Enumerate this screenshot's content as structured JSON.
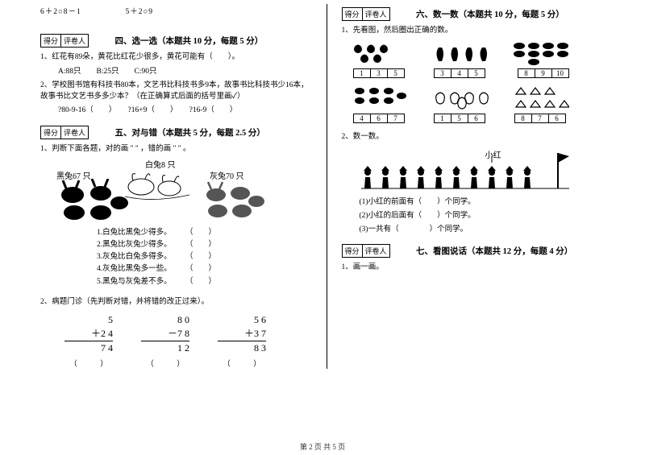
{
  "top_eq": {
    "a": "6＋2○8－1",
    "b": "5＋2○9"
  },
  "scorebox": {
    "s": "得分",
    "g": "评卷人"
  },
  "s4": {
    "title": "四、选一选（本题共 10 分，每题 5 分）",
    "q1": "1、红花有89朵，黄花比红花少很多，黄花可能有（　　）。",
    "q1opts": "A:88只　　B:25只　　C:90只",
    "q2": "2、学校图书馆有科技书80本，文艺书比科技书多9本，故事书比科技书少16本，故事书比文艺书多多少本？（在正确算式后面的括号里画✓）",
    "q2opts": "?80-9-16（　　）　　?16+9（　　）　　?16-9（　　）"
  },
  "s5": {
    "title": "五、对与错（本题共 5 分，每题 2.5 分）",
    "q1": "1、判断下面各题，对的画 \" \" ，错的画 \" \" 。",
    "lbl_white": "白兔8 只",
    "lbl_black": "黑兔67 只",
    "lbl_grey": "灰兔70 只",
    "j1": "1.白兔比黑兔少得多。",
    "p": "（　　）",
    "j2": "2.黑兔比灰兔少得多。",
    "j3": "3.灰兔比白兔多得多。",
    "j4": "4.灰兔比黑兔多一些。",
    "j5": "5.黑兔与灰兔差不多。",
    "q2": "2、病题门诊（先判断对错，并将错的改正过来）。",
    "a": {
      "t": "5",
      "m": "＋2 4",
      "b": "7 4"
    },
    "b": {
      "t": "8 0",
      "m": "－7 8",
      "b": "1 2"
    },
    "c": {
      "t": "5 6",
      "m": "＋3 7",
      "b": "8 3"
    },
    "par": "（　　　）"
  },
  "s6": {
    "title": "六、数一数（本题共 10 分，每题 5 分）",
    "q1": "1、先看图，然后圈出正确的数。",
    "r1": [
      [
        "1",
        "3",
        "5"
      ],
      [
        "3",
        "4",
        "5"
      ],
      [
        "8",
        "9",
        "10"
      ]
    ],
    "r2": [
      [
        "4",
        "6",
        "7"
      ],
      [
        "1",
        "5",
        "6"
      ],
      [
        "8",
        "7",
        "6"
      ]
    ],
    "q2": "2、数一数。",
    "xh": "小红",
    "a": "(1)小红的前面有（　　）个同学。",
    "b": "(2)小红的后面有（　　）个同学。",
    "c": "(3)一共有（　　　　）个同学。"
  },
  "s7": {
    "title": "七、看图说话（本题共 12 分，每题 4 分）",
    "q1": "1、画一画。"
  },
  "footer": "第 2 页 共 5 页"
}
